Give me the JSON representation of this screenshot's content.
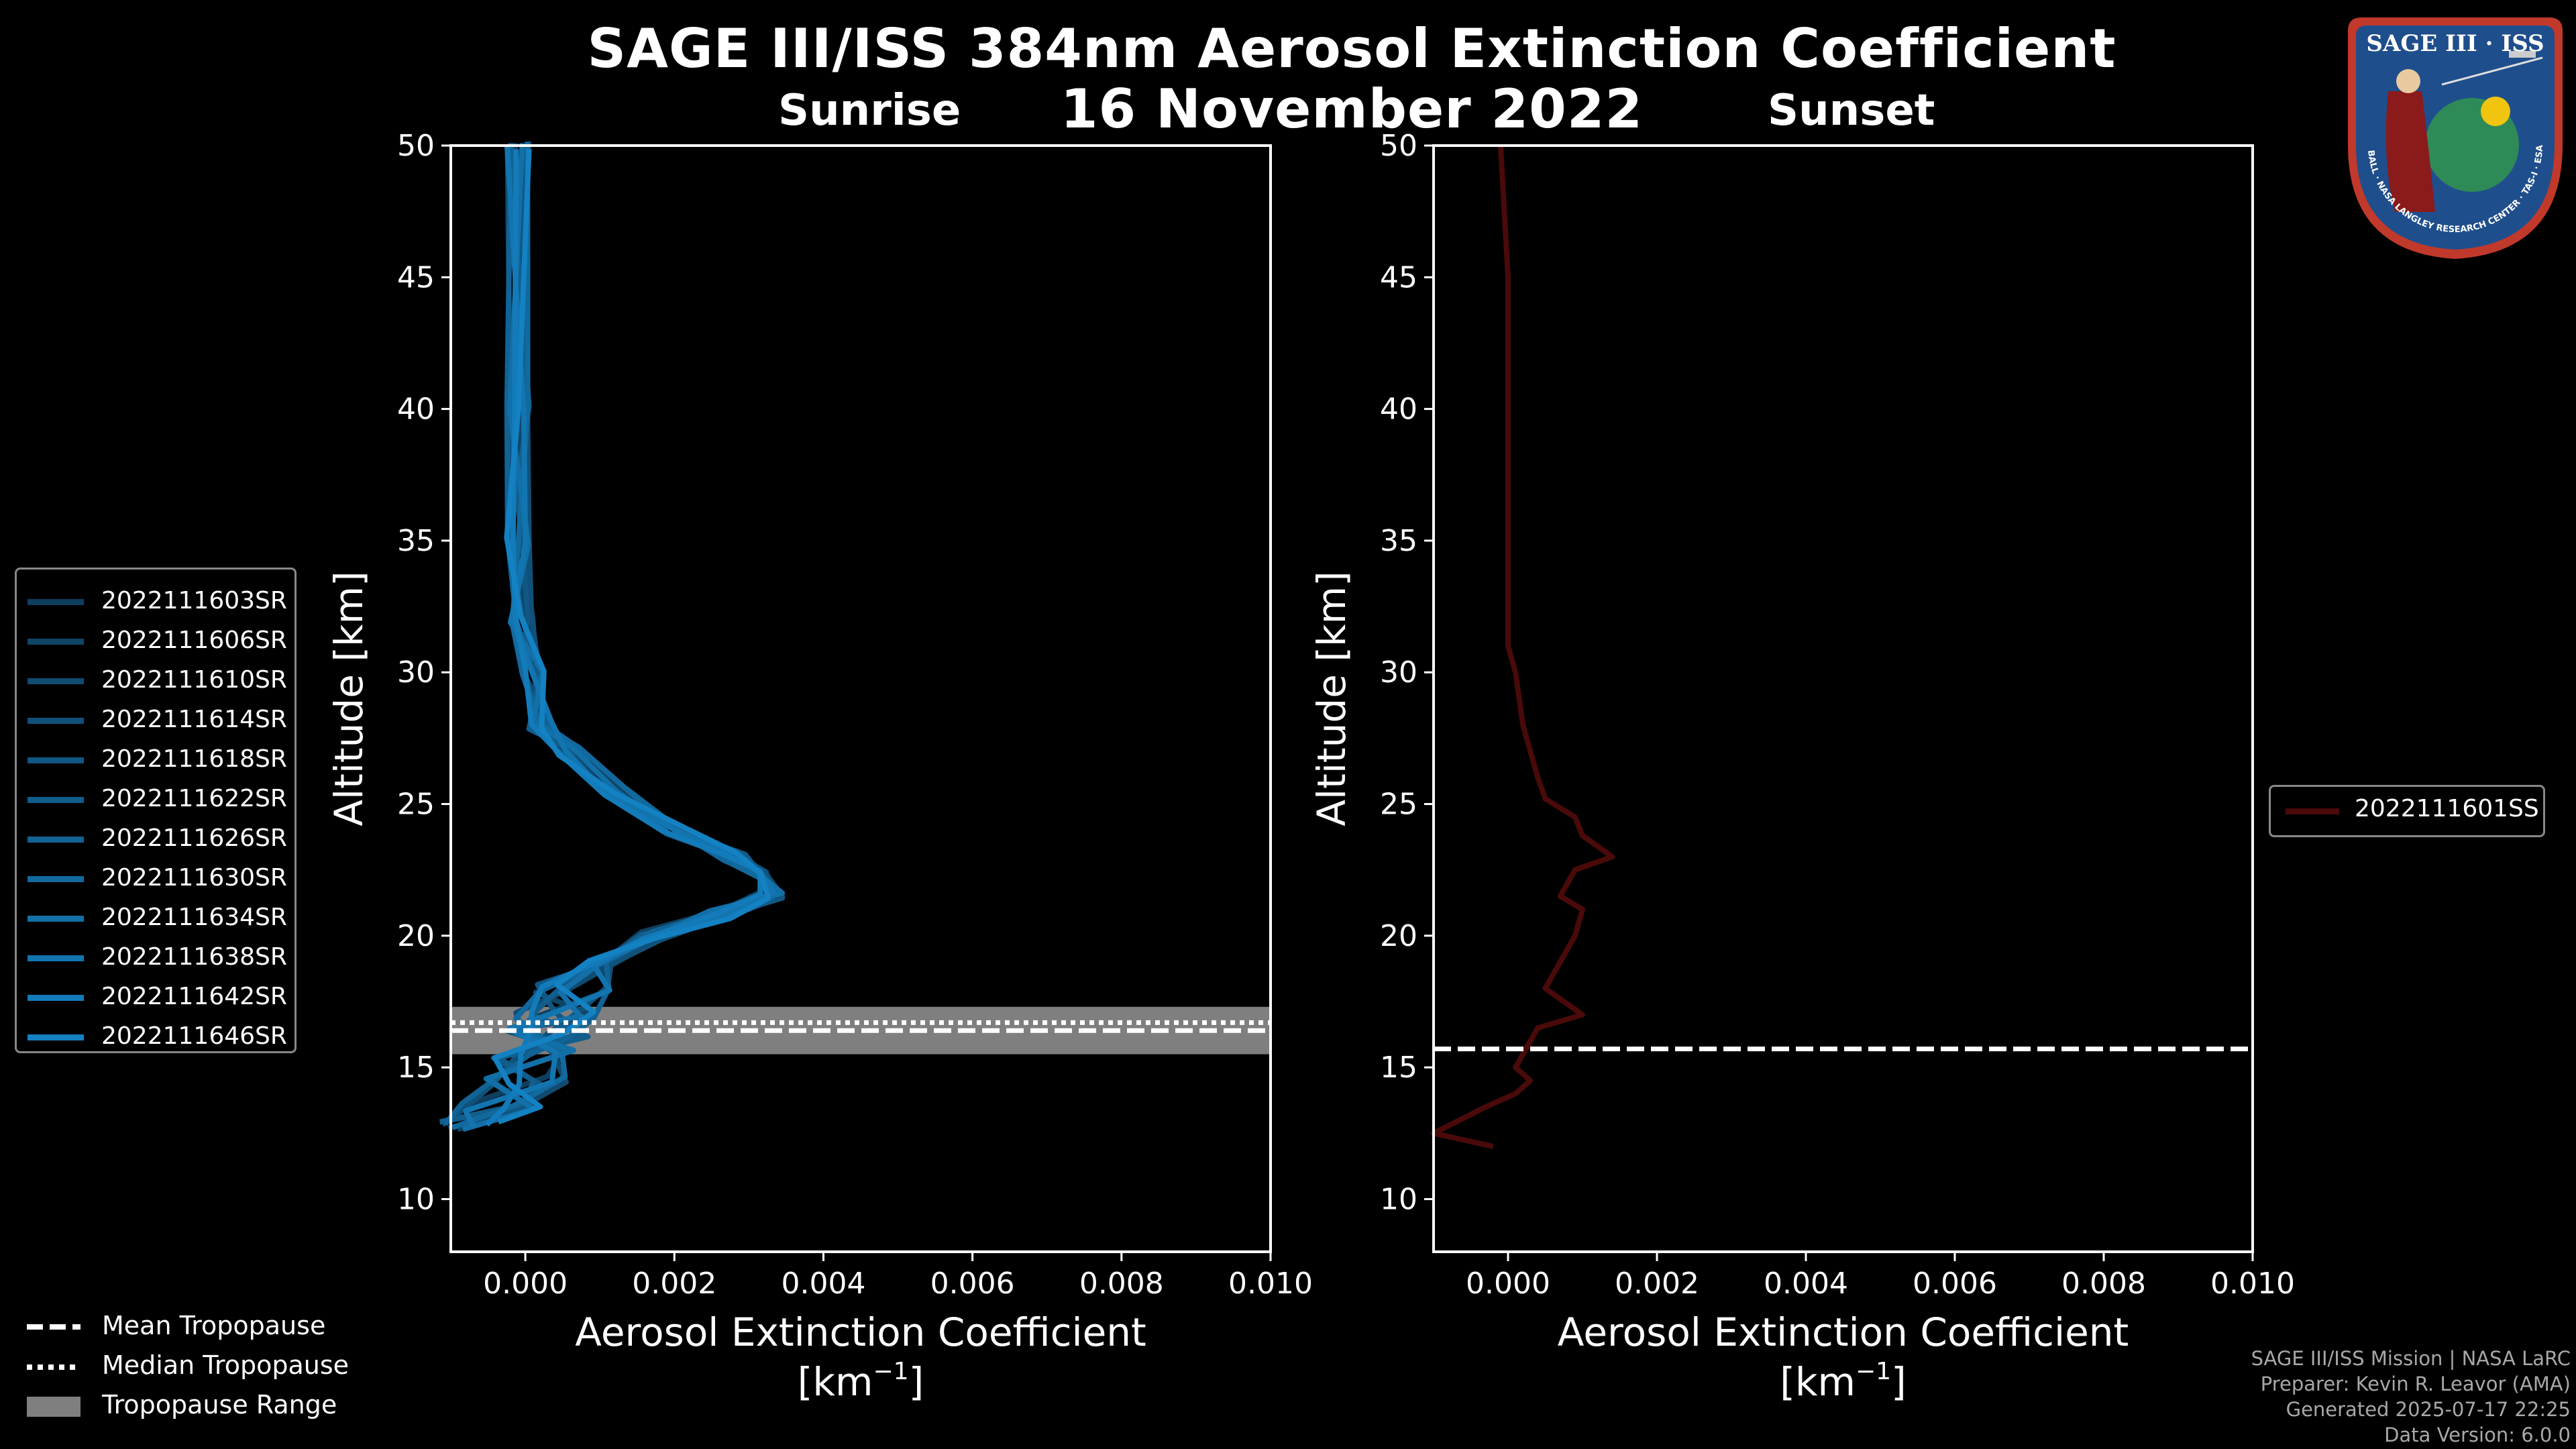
{
  "title": "SAGE III/ISS 384nm Aerosol Extinction Coefficient",
  "subtitle": "16 November 2022",
  "colors": {
    "background": "#000000",
    "sunrise_series": [
      "#0f3f5f",
      "#0f4568",
      "#104b71",
      "#10517a",
      "#105783",
      "#115d8c",
      "#116395",
      "#12699e",
      "#126fa7",
      "#1275b0",
      "#137bb9",
      "#1381c2"
    ],
    "sunset_series": "#4a0a0a",
    "tropopause_range": "#7f7f7f"
  },
  "chart_data": [
    {
      "type": "line",
      "panel": "Sunrise",
      "xlabel": "Aerosol Extinction Coefficient",
      "xunit": "[km",
      "xunit_sup": "−1",
      "xunit_close": "]",
      "ylabel": "Altitude [km]",
      "xlim": [
        -0.001,
        0.01
      ],
      "ylim": [
        8,
        50
      ],
      "xticks": [
        "0.000",
        "0.002",
        "0.004",
        "0.006",
        "0.008",
        "0.010"
      ],
      "xtick_values": [
        0.0,
        0.002,
        0.004,
        0.006,
        0.008,
        0.01
      ],
      "yticks": [
        10,
        15,
        20,
        25,
        30,
        35,
        40,
        45,
        50
      ],
      "base_profile": [
        [
          -0.0001,
          50
        ],
        [
          -0.0001,
          40
        ],
        [
          -0.0001,
          35
        ],
        [
          -5e-05,
          32
        ],
        [
          0.0001,
          30
        ],
        [
          0.0002,
          28
        ],
        [
          0.0006,
          27
        ],
        [
          0.0012,
          25.5
        ],
        [
          0.002,
          24
        ],
        [
          0.0028,
          23
        ],
        [
          0.0033,
          22.3
        ],
        [
          0.0033,
          21.5
        ],
        [
          0.0026,
          20.8
        ],
        [
          0.0017,
          20
        ],
        [
          0.001,
          19
        ],
        [
          0.0006,
          18
        ],
        [
          0.0004,
          17
        ],
        [
          0.0003,
          16.3
        ],
        [
          0.0001,
          15.5
        ],
        [
          0.0,
          14.5
        ],
        [
          -0.0003,
          13.5
        ],
        [
          -0.0006,
          12.8
        ]
      ],
      "series": [
        {
          "name": "2022111603SR"
        },
        {
          "name": "2022111606SR"
        },
        {
          "name": "2022111610SR"
        },
        {
          "name": "2022111614SR"
        },
        {
          "name": "2022111618SR"
        },
        {
          "name": "2022111622SR"
        },
        {
          "name": "2022111626SR"
        },
        {
          "name": "2022111630SR"
        },
        {
          "name": "2022111634SR"
        },
        {
          "name": "2022111638SR"
        },
        {
          "name": "2022111642SR"
        },
        {
          "name": "2022111646SR"
        }
      ],
      "mean_tropopause": 16.4,
      "median_tropopause": 16.7,
      "tropopause_range": [
        15.5,
        17.3
      ]
    },
    {
      "type": "line",
      "panel": "Sunset",
      "xlabel": "Aerosol Extinction Coefficient",
      "xunit": "[km",
      "xunit_sup": "−1",
      "xunit_close": "]",
      "ylabel": "Altitude [km]",
      "xlim": [
        -0.001,
        0.01
      ],
      "ylim": [
        8,
        50
      ],
      "xticks": [
        "0.000",
        "0.002",
        "0.004",
        "0.006",
        "0.008",
        "0.010"
      ],
      "xtick_values": [
        0.0,
        0.002,
        0.004,
        0.006,
        0.008,
        0.01
      ],
      "yticks": [
        10,
        15,
        20,
        25,
        30,
        35,
        40,
        45,
        50
      ],
      "series": [
        {
          "name": "2022111601SS",
          "points": [
            [
              -0.0001,
              50
            ],
            [
              0.0,
              45
            ],
            [
              0.0,
              40
            ],
            [
              0.0,
              35
            ],
            [
              0.0,
              32
            ],
            [
              0.0,
              31
            ],
            [
              0.0001,
              30
            ],
            [
              0.0002,
              28
            ],
            [
              0.0003,
              27
            ],
            [
              0.0004,
              26
            ],
            [
              0.0005,
              25.2
            ],
            [
              0.0009,
              24.5
            ],
            [
              0.001,
              23.8
            ],
            [
              0.0014,
              23
            ],
            [
              0.0009,
              22.5
            ],
            [
              0.0007,
              21.5
            ],
            [
              0.001,
              21
            ],
            [
              0.0009,
              20
            ],
            [
              0.0007,
              19
            ],
            [
              0.0005,
              18
            ],
            [
              0.001,
              17
            ],
            [
              0.0004,
              16.5
            ],
            [
              0.0003,
              16
            ],
            [
              0.0001,
              15
            ],
            [
              0.0003,
              14.5
            ],
            [
              0.0001,
              14
            ],
            [
              -0.0003,
              13.5
            ],
            [
              -0.001,
              12.5
            ],
            [
              -0.0002,
              12
            ]
          ]
        }
      ],
      "mean_tropopause": 15.7
    }
  ],
  "legend_tropopause": {
    "mean": "Mean Tropopause",
    "median": "Median Tropopause",
    "range": "Tropopause Range"
  },
  "footer": {
    "line1": "SAGE III/ISS Mission | NASA LaRC",
    "line2": "Preparer: Kevin R. Leavor (AMA)",
    "line3": "Generated 2025-07-17 22:25",
    "line4": "Data Version: 6.0.0"
  },
  "logo": {
    "top_text": "SAGE III · ISS",
    "ring_text": "BALL · NASA LANGLEY RESEARCH CENTER · TAS-I · ESA"
  }
}
